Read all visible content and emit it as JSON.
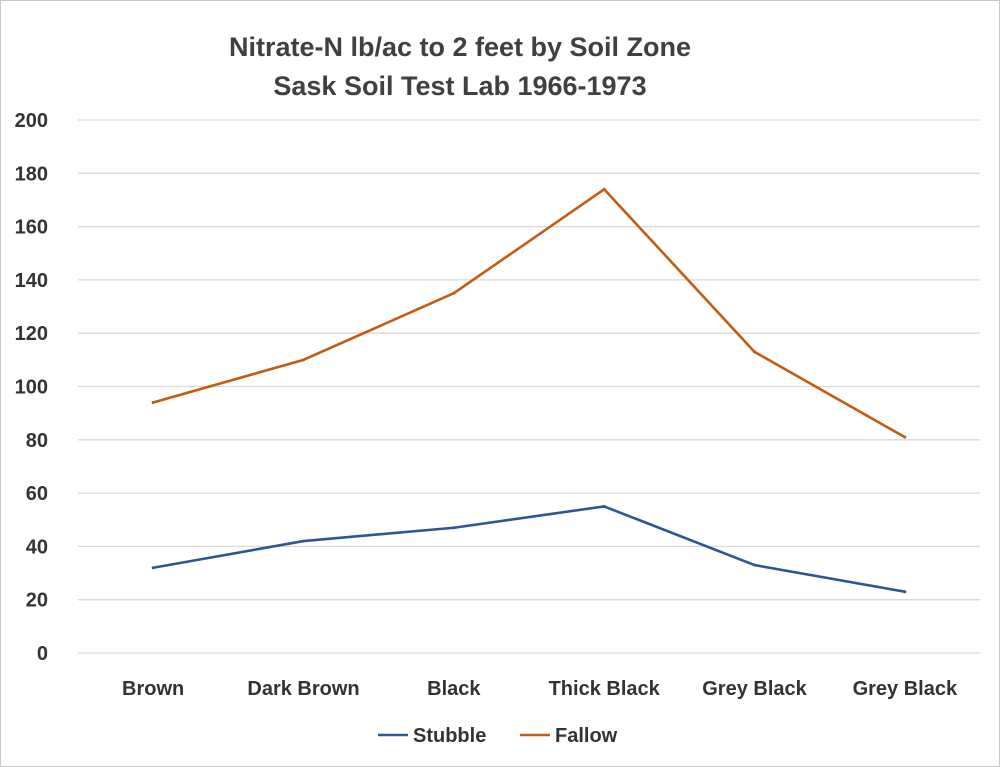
{
  "chart_data": {
    "type": "line",
    "title": "Nitrate-N lb/ac to 2 feet by Soil Zone",
    "subtitle": "Sask Soil Test Lab 1966-1973",
    "xlabel": "",
    "ylabel": "",
    "ylim": [
      0,
      200
    ],
    "yticks": [
      "0",
      "20",
      "40",
      "60",
      "80",
      "100",
      "120",
      "140",
      "160",
      "180",
      "200"
    ],
    "grid": true,
    "legend_position": "bottom",
    "categories": [
      "Brown",
      "Dark Brown",
      "Black",
      "Thick Black",
      "Grey Black",
      "Grey Black"
    ],
    "series": [
      {
        "name": "Stubble",
        "color": "#2e5597",
        "values": [
          32,
          42,
          47,
          55,
          33,
          23
        ]
      },
      {
        "name": "Fallow",
        "color": "#c55a11",
        "values": [
          94,
          110,
          135,
          174,
          113,
          81
        ]
      }
    ]
  }
}
